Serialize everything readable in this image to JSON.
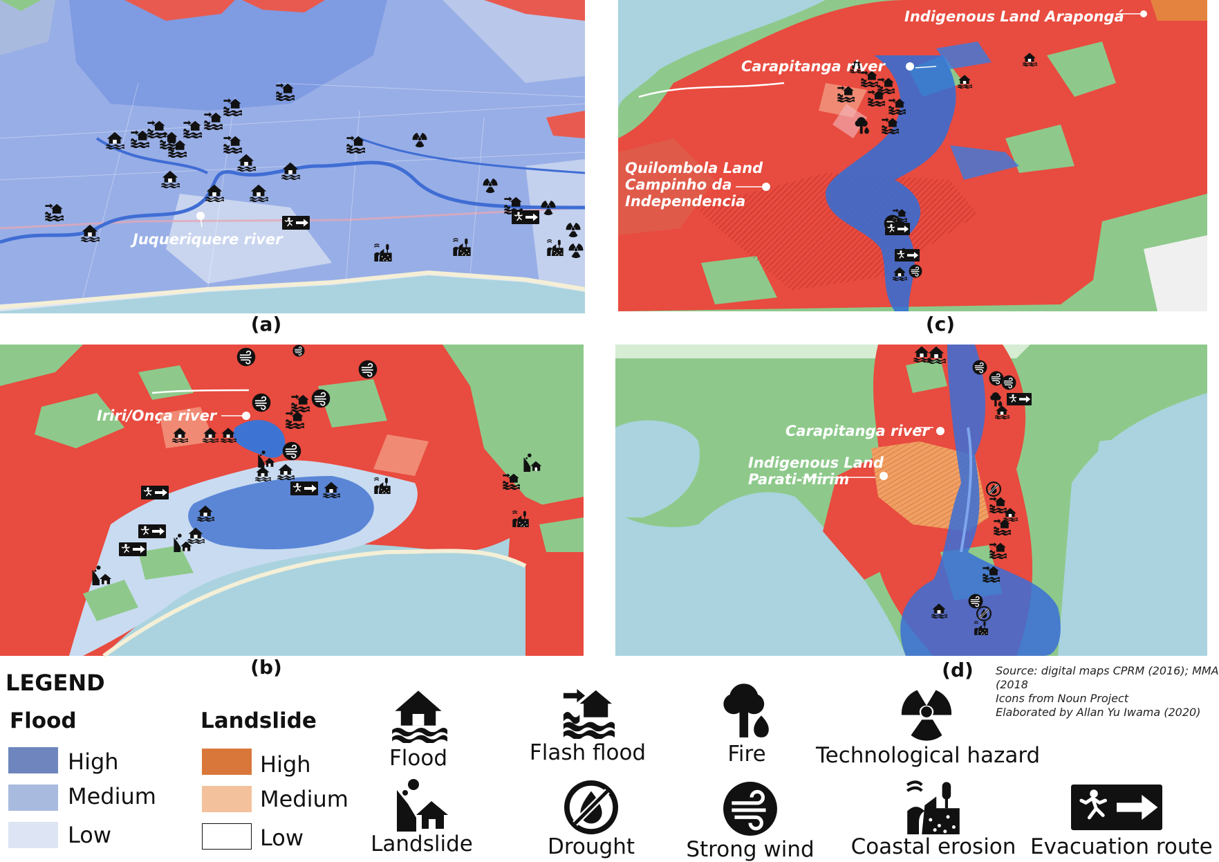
{
  "panels": {
    "a": {
      "label": "(a)",
      "river": "Juqueriquere river"
    },
    "b": {
      "label": "(b)",
      "river": "Iriri/Onça river"
    },
    "c": {
      "label": "(c)",
      "river": "Carapitanga river",
      "land1": "Indigenous Land Arapongá",
      "land2_l1": "Quilombola Land",
      "land2_l2": "Campinho da",
      "land2_l3": "Independencia"
    },
    "d": {
      "label": "(d)",
      "river": "Carapitanga river",
      "land_l1": "Indigenous Land",
      "land_l2": "Parati-Mirim"
    }
  },
  "legend": {
    "title": "LEGEND",
    "flood": {
      "heading": "Flood",
      "high": "High",
      "medium": "Medium",
      "low": "Low",
      "colors": {
        "high": "#6e86bd",
        "medium": "#a9badf",
        "low": "#dde4f3"
      }
    },
    "landslide": {
      "heading": "Landslide",
      "high": "High",
      "medium": "Medium",
      "low": "Low",
      "colors": {
        "high": "#d9773b",
        "medium": "#f3c19c",
        "low": "#ffffff"
      }
    },
    "icons": {
      "flood": "Flood",
      "flash_flood": "Flash flood",
      "fire": "Fire",
      "technological": "Technological hazard",
      "landslide": "Landslide",
      "drought": "Drought",
      "strong_wind": "Strong wind",
      "coastal_erosion": "Coastal erosion",
      "evacuation": "Evacuation route"
    }
  },
  "source": {
    "line1": "Source: digital maps CPRM (2016); MMA",
    "line2": "(2018",
    "line3": "Icons from Noun Project",
    "line4": "Elaborated by Allan Yu Iwama (2020)"
  }
}
